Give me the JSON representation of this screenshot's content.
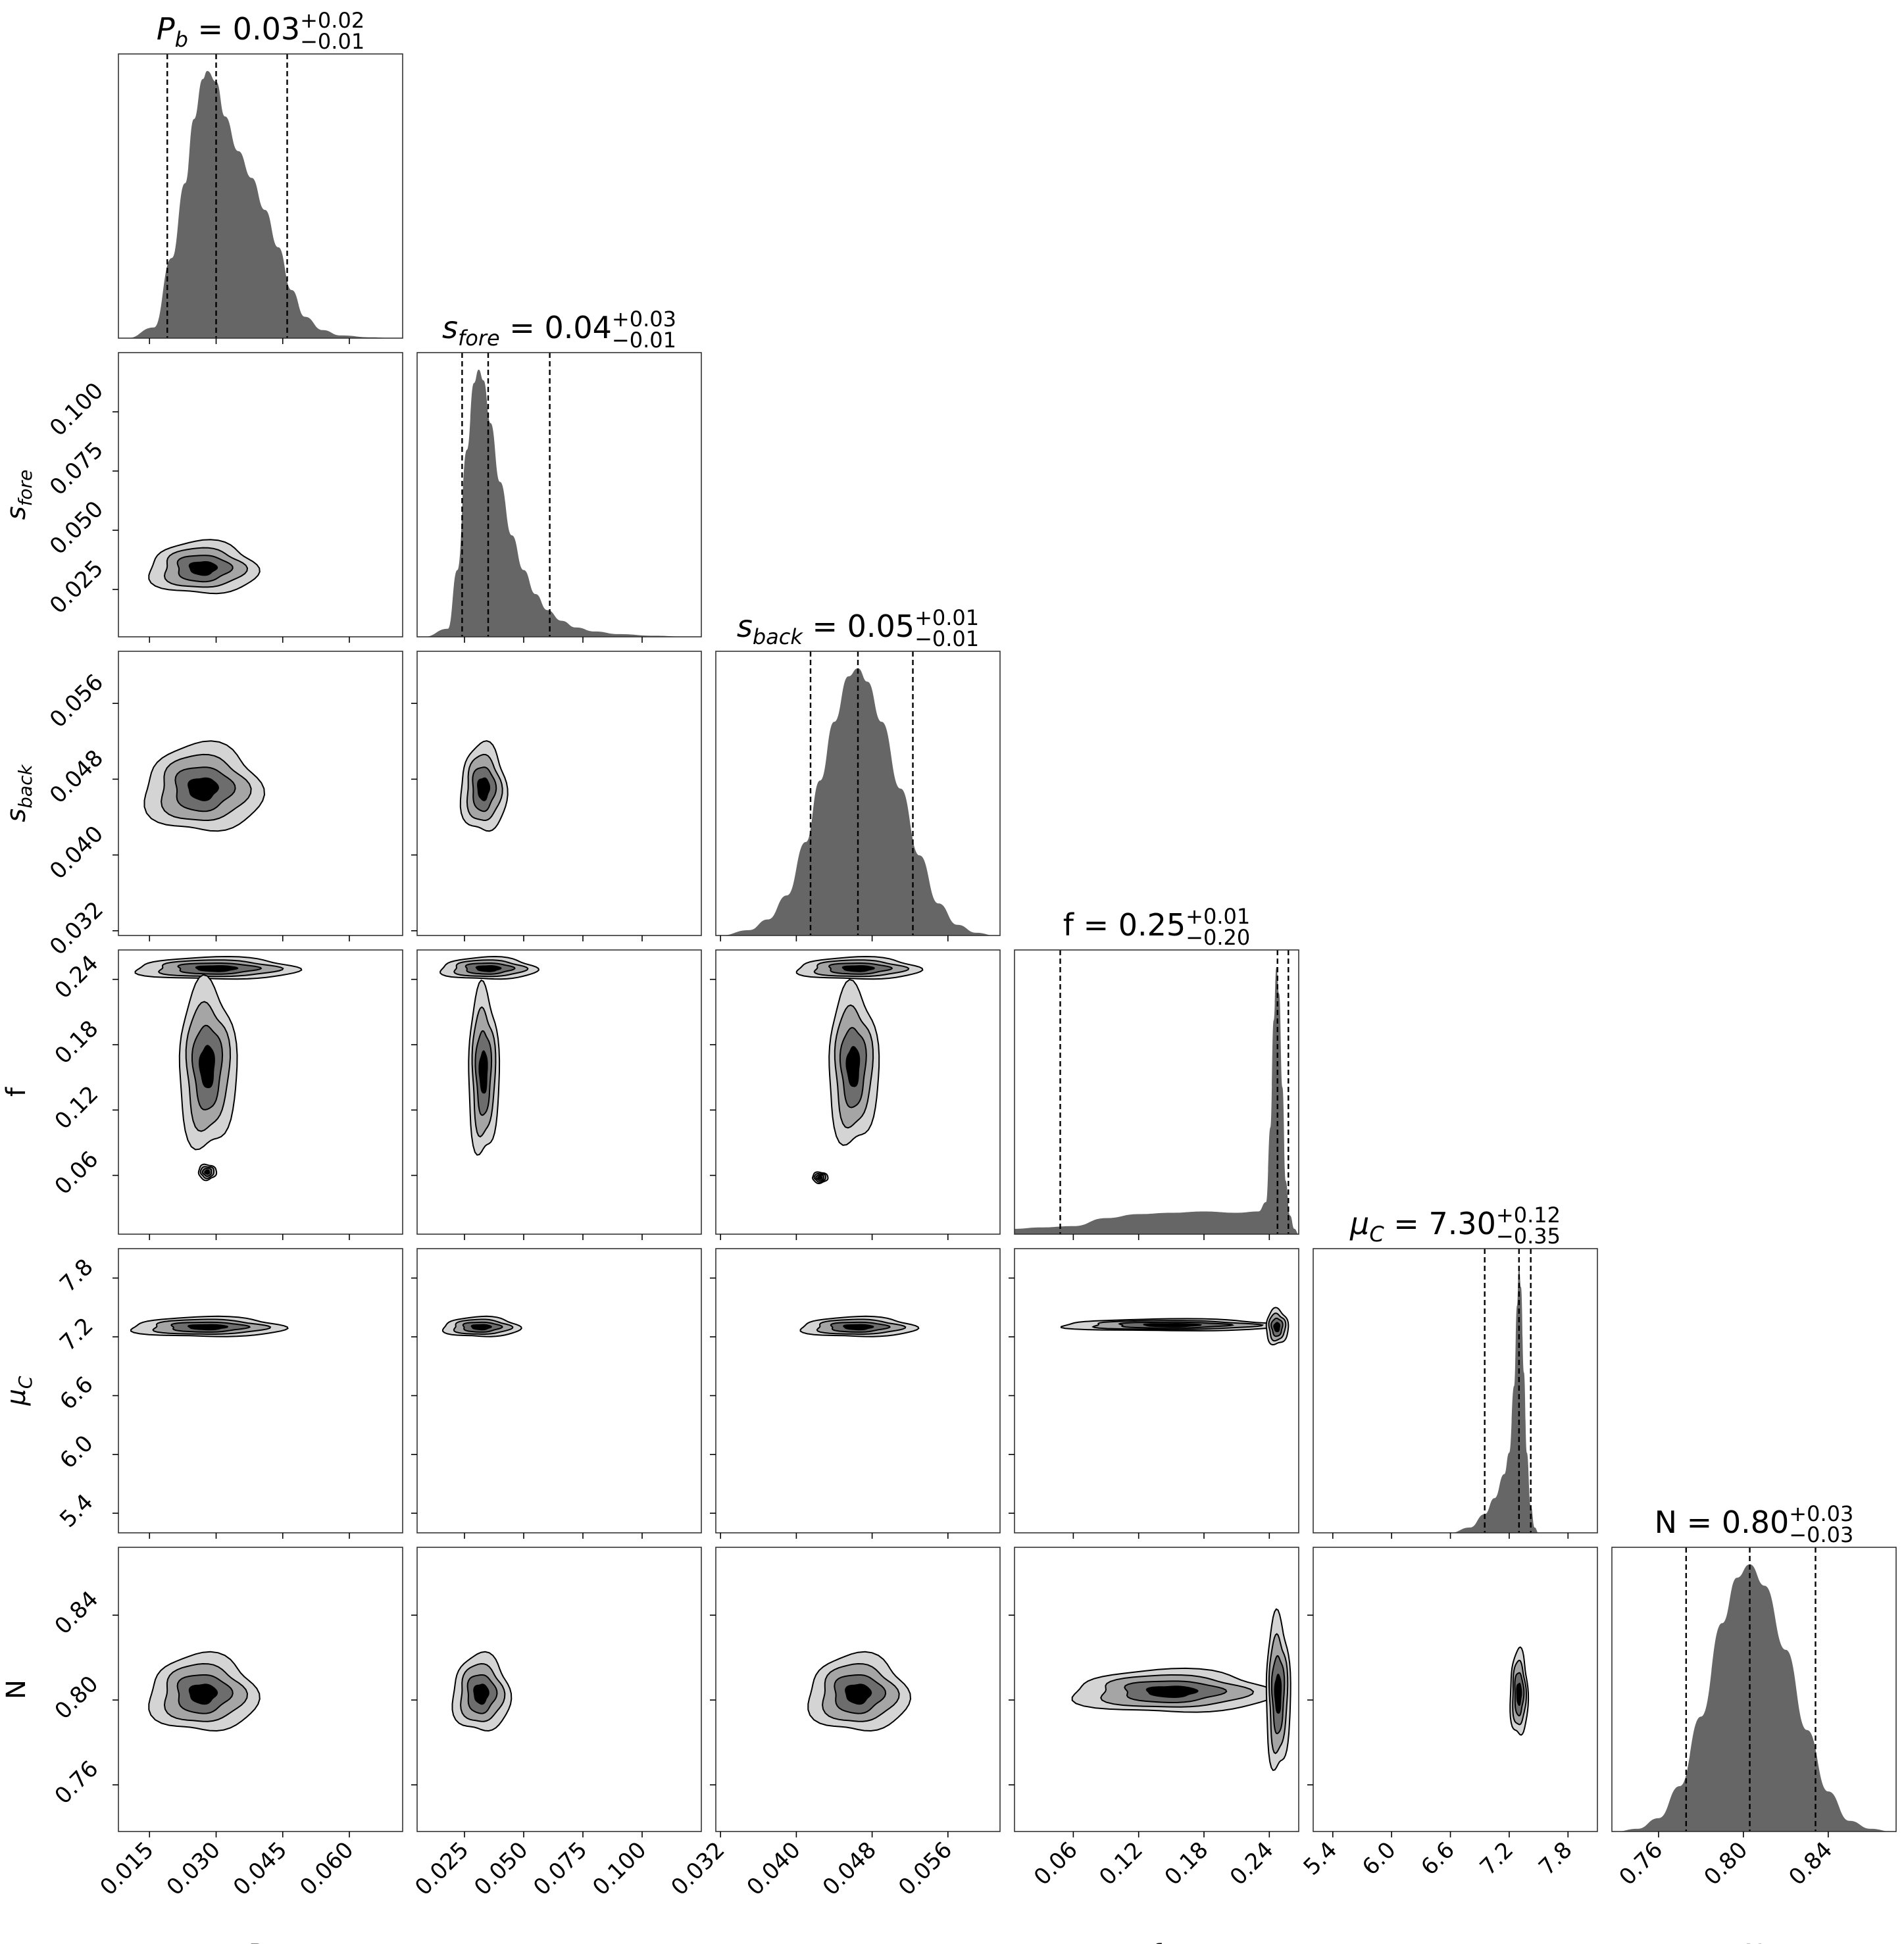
{
  "chart_data": {
    "type": "corner",
    "parameters": [
      {
        "label": "P_b",
        "display": "P",
        "sub": "b",
        "italic": true,
        "title": {
          "name": "P",
          "sub": "b",
          "value": "0.03",
          "plus": "+0.02",
          "minus": "−0.01"
        },
        "range": [
          0.008,
          0.072
        ],
        "median": 0.03,
        "q16": 0.019,
        "q84": 0.046,
        "ticks": [
          0.015,
          0.03,
          0.045,
          0.06
        ],
        "tick_labels": [
          "0.015",
          "0.030",
          "0.045",
          "0.060"
        ],
        "marginal": {
          "x": [
            0.01,
            0.016,
            0.02,
            0.023,
            0.025,
            0.027,
            0.028,
            0.03,
            0.032,
            0.035,
            0.038,
            0.041,
            0.044,
            0.047,
            0.05,
            0.054,
            0.058,
            0.065,
            0.07
          ],
          "y": [
            0.0,
            0.04,
            0.3,
            0.58,
            0.82,
            0.97,
            1.0,
            0.96,
            0.83,
            0.7,
            0.6,
            0.48,
            0.34,
            0.18,
            0.08,
            0.03,
            0.01,
            0.003,
            0.0
          ]
        }
      },
      {
        "label": "s_fore",
        "display": "s",
        "sub": "fore",
        "italic": true,
        "title": {
          "name": "s",
          "sub": "fore",
          "value": "0.04",
          "plus": "+0.03",
          "minus": "−0.01"
        },
        "range": [
          0.005,
          0.125
        ],
        "median": 0.035,
        "q16": 0.024,
        "q84": 0.061,
        "ticks": [
          0.025,
          0.05,
          0.075,
          0.1
        ],
        "tick_labels": [
          "0.025",
          "0.050",
          "0.075",
          "0.100"
        ],
        "marginal": {
          "x": [
            0.008,
            0.018,
            0.022,
            0.026,
            0.029,
            0.031,
            0.033,
            0.036,
            0.04,
            0.045,
            0.05,
            0.055,
            0.06,
            0.066,
            0.072,
            0.08,
            0.09,
            0.105,
            0.12
          ],
          "y": [
            0.0,
            0.03,
            0.25,
            0.7,
            0.95,
            1.0,
            0.96,
            0.8,
            0.58,
            0.38,
            0.25,
            0.16,
            0.1,
            0.06,
            0.035,
            0.02,
            0.01,
            0.004,
            0.0
          ]
        }
      },
      {
        "label": "s_back",
        "display": "s",
        "sub": "back",
        "italic": true,
        "title": {
          "name": "s",
          "sub": "back",
          "value": "0.05",
          "plus": "+0.01",
          "minus": "−0.01"
        },
        "range": [
          0.0315,
          0.0615
        ],
        "median": 0.0465,
        "q16": 0.0415,
        "q84": 0.0523,
        "ticks": [
          0.032,
          0.04,
          0.048,
          0.056
        ],
        "tick_labels": [
          "0.032",
          "0.040",
          "0.048",
          "0.056"
        ],
        "marginal": {
          "x": [
            0.032,
            0.035,
            0.037,
            0.039,
            0.041,
            0.0425,
            0.044,
            0.0455,
            0.0465,
            0.0475,
            0.049,
            0.051,
            0.053,
            0.055,
            0.057,
            0.059,
            0.061
          ],
          "y": [
            0.0,
            0.02,
            0.06,
            0.15,
            0.35,
            0.58,
            0.8,
            0.97,
            1.0,
            0.95,
            0.8,
            0.55,
            0.3,
            0.12,
            0.04,
            0.01,
            0.0
          ]
        }
      },
      {
        "label": "f",
        "display": "f",
        "sub": "",
        "italic": false,
        "title": {
          "name": "f",
          "sub": "",
          "value": "0.25",
          "plus": "+0.01",
          "minus": "−0.20"
        },
        "range": [
          0.006,
          0.267
        ],
        "median": 0.2475,
        "q16": 0.048,
        "q84": 0.2575,
        "ticks": [
          0.06,
          0.12,
          0.18,
          0.24
        ],
        "tick_labels": [
          "0.06",
          "0.12",
          "0.18",
          "0.24"
        ],
        "marginal": {
          "x": [
            0.006,
            0.03,
            0.06,
            0.09,
            0.12,
            0.15,
            0.18,
            0.21,
            0.23,
            0.237,
            0.241,
            0.244,
            0.2465,
            0.249,
            0.252,
            0.255,
            0.259,
            0.263,
            0.267
          ],
          "y": [
            0.02,
            0.025,
            0.03,
            0.06,
            0.075,
            0.08,
            0.085,
            0.08,
            0.085,
            0.12,
            0.4,
            0.8,
            1.0,
            0.9,
            0.55,
            0.2,
            0.07,
            0.02,
            0.0
          ]
        }
      },
      {
        "label": "mu_C",
        "display": "μ",
        "sub": "C",
        "italic": true,
        "title": {
          "name": "μ",
          "sub": "C",
          "value": "7.30",
          "plus": "+0.12",
          "minus": "−0.35"
        },
        "range": [
          5.2,
          8.1
        ],
        "median": 7.3,
        "q16": 6.95,
        "q84": 7.42,
        "ticks": [
          5.4,
          6.0,
          6.6,
          7.2,
          7.8
        ],
        "tick_labels": [
          "5.4",
          "6.0",
          "6.6",
          "7.2",
          "7.8"
        ],
        "marginal": {
          "x": [
            6.6,
            6.8,
            6.95,
            7.05,
            7.15,
            7.2,
            7.25,
            7.28,
            7.3,
            7.32,
            7.35,
            7.38,
            7.42,
            7.46,
            7.5
          ],
          "y": [
            0.0,
            0.02,
            0.07,
            0.13,
            0.22,
            0.3,
            0.55,
            0.85,
            1.0,
            0.92,
            0.6,
            0.3,
            0.1,
            0.02,
            0.0
          ]
        }
      },
      {
        "label": "N",
        "display": "N",
        "sub": "",
        "italic": false,
        "title": {
          "name": "N",
          "sub": "",
          "value": "0.80",
          "plus": "+0.03",
          "minus": "−0.03"
        },
        "range": [
          0.738,
          0.872
        ],
        "median": 0.803,
        "q16": 0.773,
        "q84": 0.834,
        "ticks": [
          0.76,
          0.8,
          0.84
        ],
        "tick_labels": [
          "0.76",
          "0.80",
          "0.84"
        ],
        "marginal": {
          "x": [
            0.74,
            0.75,
            0.76,
            0.77,
            0.78,
            0.79,
            0.797,
            0.803,
            0.81,
            0.82,
            0.83,
            0.84,
            0.85,
            0.86,
            0.87
          ],
          "y": [
            0.0,
            0.01,
            0.05,
            0.17,
            0.43,
            0.78,
            0.95,
            1.0,
            0.92,
            0.68,
            0.38,
            0.15,
            0.04,
            0.01,
            0.0
          ]
        }
      }
    ],
    "pairs": [
      {
        "row": 1,
        "col": 0,
        "blobs": [
          {
            "x": 0.027,
            "y": 0.034,
            "sx": 0.006,
            "sy": 0.0055
          }
        ]
      },
      {
        "row": 2,
        "col": 0,
        "blobs": [
          {
            "x": 0.027,
            "y": 0.047,
            "sx": 0.0065,
            "sy": 0.0023
          }
        ]
      },
      {
        "row": 2,
        "col": 1,
        "blobs": [
          {
            "x": 0.033,
            "y": 0.047,
            "sx": 0.0048,
            "sy": 0.0023
          }
        ]
      },
      {
        "row": 2,
        "col": 2,
        "blobs": []
      },
      {
        "row": 3,
        "col": 0,
        "blobs": [
          {
            "x": 0.03,
            "y": 0.25,
            "sx": 0.009,
            "sy": 0.005
          },
          {
            "x": 0.028,
            "y": 0.16,
            "sx": 0.0032,
            "sy": 0.038
          },
          {
            "x": 0.028,
            "y": 0.063,
            "sx": 0.001,
            "sy": 0.0035
          }
        ]
      },
      {
        "row": 3,
        "col": 1,
        "blobs": [
          {
            "x": 0.035,
            "y": 0.25,
            "sx": 0.01,
            "sy": 0.005
          },
          {
            "x": 0.033,
            "y": 0.155,
            "sx": 0.0032,
            "sy": 0.038
          }
        ]
      },
      {
        "row": 3,
        "col": 2,
        "blobs": [
          {
            "x": 0.0465,
            "y": 0.25,
            "sx": 0.0032,
            "sy": 0.005
          },
          {
            "x": 0.046,
            "y": 0.16,
            "sx": 0.0013,
            "sy": 0.036
          },
          {
            "x": 0.0425,
            "y": 0.058,
            "sx": 0.0004,
            "sy": 0.0025
          }
        ]
      },
      {
        "row": 4,
        "col": 0,
        "blobs": [
          {
            "x": 0.028,
            "y": 7.3,
            "sx": 0.0085,
            "sy": 0.05
          }
        ]
      },
      {
        "row": 4,
        "col": 1,
        "blobs": [
          {
            "x": 0.032,
            "y": 7.3,
            "sx": 0.008,
            "sy": 0.05
          }
        ]
      },
      {
        "row": 4,
        "col": 2,
        "blobs": [
          {
            "x": 0.0465,
            "y": 7.3,
            "sx": 0.003,
            "sy": 0.05
          }
        ]
      },
      {
        "row": 4,
        "col": 3,
        "blobs": [
          {
            "x": 0.15,
            "y": 7.32,
            "sx": 0.05,
            "sy": 0.03
          },
          {
            "x": 0.247,
            "y": 7.3,
            "sx": 0.005,
            "sy": 0.09
          }
        ]
      },
      {
        "row": 5,
        "col": 0,
        "blobs": [
          {
            "x": 0.027,
            "y": 0.803,
            "sx": 0.006,
            "sy": 0.009
          }
        ]
      },
      {
        "row": 5,
        "col": 1,
        "blobs": [
          {
            "x": 0.032,
            "y": 0.803,
            "sx": 0.006,
            "sy": 0.009
          }
        ]
      },
      {
        "row": 5,
        "col": 2,
        "blobs": [
          {
            "x": 0.0465,
            "y": 0.803,
            "sx": 0.0026,
            "sy": 0.009
          }
        ]
      },
      {
        "row": 5,
        "col": 3,
        "blobs": [
          {
            "x": 0.15,
            "y": 0.804,
            "sx": 0.045,
            "sy": 0.005
          },
          {
            "x": 0.248,
            "y": 0.803,
            "sx": 0.0055,
            "sy": 0.018
          }
        ]
      },
      {
        "row": 5,
        "col": 4,
        "blobs": [
          {
            "x": 7.3,
            "y": 0.803,
            "sx": 0.045,
            "sy": 0.01
          }
        ]
      }
    ],
    "contour_levels": [
      0.13,
      0.32,
      0.6,
      0.88
    ],
    "contour_fills": [
      "#d4d4d4",
      "#a5a5a5",
      "#6d6d6d",
      "#000000"
    ],
    "hist_fill": "#666666",
    "line_color": "#000000"
  }
}
